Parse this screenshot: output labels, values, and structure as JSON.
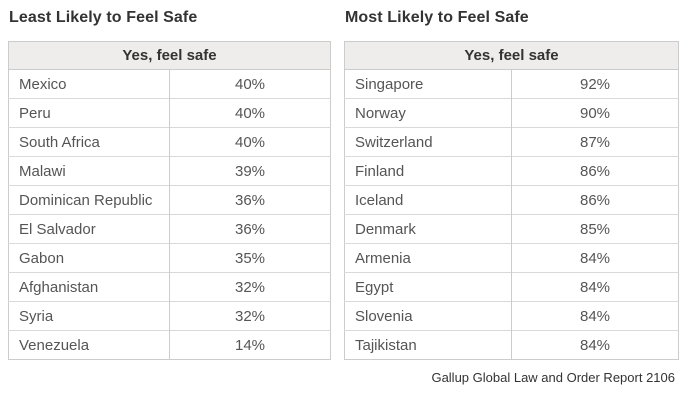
{
  "tables": [
    {
      "title": "Least Likely to Feel Safe",
      "header": "Yes, feel safe",
      "rows": [
        {
          "country": "Mexico",
          "value": "40%"
        },
        {
          "country": "Peru",
          "value": "40%"
        },
        {
          "country": "South Africa",
          "value": "40%"
        },
        {
          "country": "Malawi",
          "value": "39%"
        },
        {
          "country": "Dominican Republic",
          "value": "36%"
        },
        {
          "country": "El Salvador",
          "value": "36%"
        },
        {
          "country": "Gabon",
          "value": "35%"
        },
        {
          "country": "Afghanistan",
          "value": "32%"
        },
        {
          "country": "Syria",
          "value": "32%"
        },
        {
          "country": "Venezuela",
          "value": "14%"
        }
      ]
    },
    {
      "title": "Most Likely to Feel Safe",
      "header": "Yes, feel safe",
      "rows": [
        {
          "country": "Singapore",
          "value": "92%"
        },
        {
          "country": "Norway",
          "value": "90%"
        },
        {
          "country": "Switzerland",
          "value": "87%"
        },
        {
          "country": "Finland",
          "value": "86%"
        },
        {
          "country": "Iceland",
          "value": "86%"
        },
        {
          "country": "Denmark",
          "value": "85%"
        },
        {
          "country": "Armenia",
          "value": "84%"
        },
        {
          "country": "Egypt",
          "value": "84%"
        },
        {
          "country": "Slovenia",
          "value": "84%"
        },
        {
          "country": "Tajikistan",
          "value": "84%"
        }
      ]
    }
  ],
  "caption": "Gallup Global Law and Order Report 2106",
  "colors": {
    "background": "#ffffff",
    "title_text": "#333333",
    "row_text": "#555555",
    "header_bg": "#eeedeb",
    "outer_border": "#cccccc",
    "row_border": "#d9d9d9"
  },
  "chart_data": [
    {
      "type": "table",
      "title": "Least Likely to Feel Safe",
      "value_header": "Yes, feel safe",
      "categories": [
        "Mexico",
        "Peru",
        "South Africa",
        "Malawi",
        "Dominican Republic",
        "El Salvador",
        "Gabon",
        "Afghanistan",
        "Syria",
        "Venezuela"
      ],
      "values": [
        40,
        40,
        40,
        39,
        36,
        36,
        35,
        32,
        32,
        14
      ],
      "unit": "%"
    },
    {
      "type": "table",
      "title": "Most Likely to Feel Safe",
      "value_header": "Yes, feel safe",
      "categories": [
        "Singapore",
        "Norway",
        "Switzerland",
        "Finland",
        "Iceland",
        "Denmark",
        "Armenia",
        "Egypt",
        "Slovenia",
        "Tajikistan"
      ],
      "values": [
        92,
        90,
        87,
        86,
        86,
        85,
        84,
        84,
        84,
        84
      ],
      "unit": "%"
    }
  ]
}
